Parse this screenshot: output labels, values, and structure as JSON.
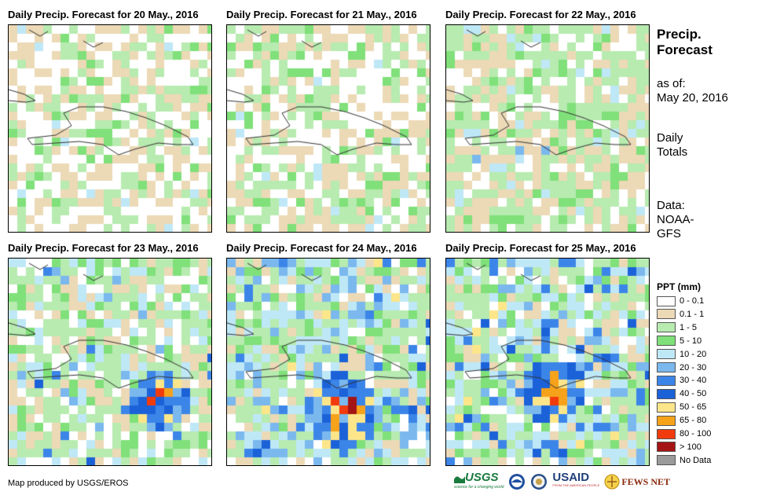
{
  "panels": [
    {
      "title": "Daily Precip. Forecast for 20 May., 2016",
      "date": "20 May., 2016"
    },
    {
      "title": "Daily Precip. Forecast for 21 May., 2016",
      "date": "21 May., 2016"
    },
    {
      "title": "Daily Precip. Forecast for 22 May., 2016",
      "date": "22 May., 2016"
    },
    {
      "title": "Daily Precip. Forecast for 23 May., 2016",
      "date": "23 May., 2016"
    },
    {
      "title": "Daily Precip. Forecast for 24 May., 2016",
      "date": "24 May., 2016"
    },
    {
      "title": "Daily Precip. Forecast for 25 May., 2016",
      "date": "25 May., 2016"
    }
  ],
  "sidebar": {
    "title_line1": "Precip.",
    "title_line2": "Forecast",
    "asof_label": "as of:",
    "asof_date": "May 20, 2016",
    "totals_line1": "Daily",
    "totals_line2": "Totals",
    "data_label": "Data:",
    "data_source_line1": "NOAA-",
    "data_source_line2": "GFS"
  },
  "legend": {
    "title": "PPT (mm)",
    "items": [
      {
        "label": "0 - 0.1",
        "color": "#ffffff"
      },
      {
        "label": "0.1 - 1",
        "color": "#ecd9b6"
      },
      {
        "label": "1 - 5",
        "color": "#b7ebb0"
      },
      {
        "label": "5 - 10",
        "color": "#80e07a"
      },
      {
        "label": "10 - 20",
        "color": "#bfe8f7"
      },
      {
        "label": "20 - 30",
        "color": "#7ab8ee"
      },
      {
        "label": "30 - 40",
        "color": "#3c85e8"
      },
      {
        "label": "40 - 50",
        "color": "#1b62d9"
      },
      {
        "label": "50 - 65",
        "color": "#fde68a"
      },
      {
        "label": "65 - 80",
        "color": "#f7a21b"
      },
      {
        "label": "80 - 100",
        "color": "#f23b0c"
      },
      {
        "label": "> 100",
        "color": "#a51414"
      },
      {
        "label": "No Data",
        "color": "#9a9a9a"
      }
    ]
  },
  "credit": "Map produced by USGS/EROS",
  "logos": {
    "usgs": "USGS",
    "usgs_tagline": "science for a changing world",
    "usaid": "USAID",
    "usaid_tagline": "FROM THE AMERICAN PEOPLE",
    "fewsnet": "FEWS NET"
  }
}
